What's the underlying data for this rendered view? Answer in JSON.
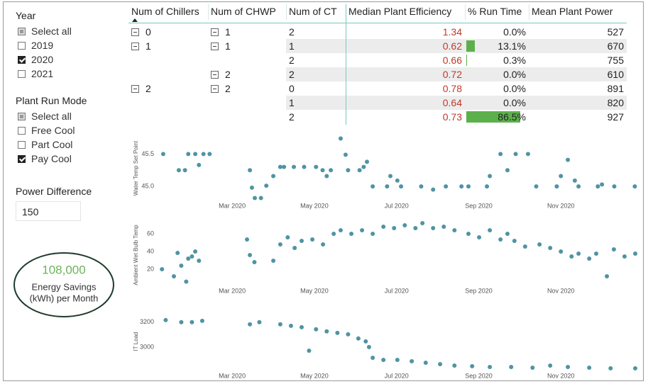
{
  "slicers": [
    {
      "title": "Year",
      "items": [
        {
          "label": "Select all",
          "state": "partial"
        },
        {
          "label": "2019",
          "state": "unchecked"
        },
        {
          "label": "2020",
          "state": "checked"
        },
        {
          "label": "2021",
          "state": "unchecked"
        }
      ]
    },
    {
      "title": "Plant Run Mode",
      "items": [
        {
          "label": "Select all",
          "state": "partial"
        },
        {
          "label": "Free Cool",
          "state": "unchecked"
        },
        {
          "label": "Part Cool",
          "state": "unchecked"
        },
        {
          "label": "Pay Cool",
          "state": "checked"
        }
      ]
    }
  ],
  "power_difference": {
    "label": "Power Difference",
    "value": "150"
  },
  "card": {
    "value": "108,000",
    "lines": [
      "Energy Savings",
      "(kWh) per Month"
    ]
  },
  "table": {
    "columns": [
      "Num of Chillers",
      "Num of CHWP",
      "Num of CT",
      "Median Plant Efficiency",
      "% Run Time",
      "Mean Plant Power"
    ],
    "rows": [
      {
        "chillers": "0",
        "chwp": "1",
        "ct": "2",
        "efficiency": "1.34",
        "run_time": 0.0,
        "run_time_label": "0.0%",
        "power": "527"
      },
      {
        "chillers": "1",
        "chwp": "1",
        "ct": "1",
        "efficiency": "0.62",
        "run_time": 13.1,
        "run_time_label": "13.1%",
        "power": "670"
      },
      {
        "chillers": null,
        "chwp": null,
        "ct": "2",
        "efficiency": "0.66",
        "run_time": 0.3,
        "run_time_label": "0.3%",
        "power": "755"
      },
      {
        "chillers": null,
        "chwp": "2",
        "ct": "2",
        "efficiency": "0.72",
        "run_time": 0.0,
        "run_time_label": "0.0%",
        "power": "610"
      },
      {
        "chillers": "2",
        "chwp": "2",
        "ct": "0",
        "efficiency": "0.78",
        "run_time": 0.0,
        "run_time_label": "0.0%",
        "power": "891"
      },
      {
        "chillers": null,
        "chwp": null,
        "ct": "1",
        "efficiency": "0.64",
        "run_time": 0.0,
        "run_time_label": "0.0%",
        "power": "820"
      },
      {
        "chillers": null,
        "chwp": null,
        "ct": "2",
        "efficiency": "0.73",
        "run_time": 86.5,
        "run_time_label": "86.5%",
        "power": "927"
      }
    ]
  },
  "chart_data": [
    {
      "type": "scatter",
      "y_label": "Water Temp Set Point",
      "color": "#4f94a2",
      "grid": false,
      "x": [
        1.32,
        1.7,
        1.85,
        1.93,
        2.1,
        2.19,
        2.3,
        2.45,
        3.43,
        3.48,
        3.55,
        3.7,
        3.83,
        4.0,
        4.17,
        4.26,
        4.5,
        4.75,
        5.04,
        5.2,
        5.3,
        5.4,
        5.64,
        5.76,
        5.82,
        6.1,
        6.2,
        6.28,
        6.42,
        6.77,
        6.85,
        7.02,
        7.11,
        7.6,
        7.89,
        8.2,
        8.58,
        8.75,
        9.2,
        9.27,
        9.53,
        9.7,
        9.9,
        10.2,
        10.4,
        10.9,
        11.0,
        11.17,
        11.34,
        11.43,
        11.9,
        12.0,
        12.3,
        12.8
      ],
      "values": [
        45.5,
        45.25,
        45.25,
        45.5,
        45.5,
        45.33,
        45.5,
        45.5,
        45.25,
        44.98,
        44.82,
        44.82,
        45.01,
        45.16,
        45.3,
        45.3,
        45.3,
        45.3,
        45.3,
        45.25,
        45.16,
        45.25,
        45.74,
        45.49,
        45.25,
        45.25,
        45.3,
        45.38,
        45.0,
        45.0,
        45.16,
        45.09,
        45.0,
        45.0,
        44.95,
        45.0,
        45.0,
        45.0,
        45.0,
        45.16,
        45.5,
        45.25,
        45.5,
        45.5,
        45.0,
        45.0,
        45.16,
        45.41,
        45.09,
        45.0,
        45.0,
        45.03,
        45.0,
        45.0
      ],
      "xlim": [
        1.2,
        13.0
      ],
      "xticks": [
        {
          "value": 3,
          "label": "Mar 2020"
        },
        {
          "value": 5,
          "label": "May 2020"
        },
        {
          "value": 7,
          "label": "Jul 2020"
        },
        {
          "value": 9,
          "label": "Sep 2020"
        },
        {
          "value": 11,
          "label": "Nov 2020"
        }
      ],
      "ylim": [
        44.76,
        45.8
      ],
      "yticks": [
        {
          "value": 45,
          "label": "45.0"
        },
        45.5
      ]
    },
    {
      "type": "scatter",
      "y_label": "Ambient Wet Bulb Temp",
      "color": "#4f94a2",
      "grid": false,
      "x": [
        1.29,
        1.58,
        1.67,
        1.76,
        1.88,
        1.93,
        2.02,
        2.1,
        2.19,
        3.36,
        3.43,
        3.54,
        4.0,
        4.17,
        4.35,
        4.52,
        4.69,
        4.95,
        5.21,
        5.47,
        5.64,
        5.9,
        6.16,
        6.42,
        6.68,
        6.94,
        7.2,
        7.46,
        7.63,
        7.89,
        8.15,
        8.41,
        8.75,
        9.01,
        9.27,
        9.53,
        9.7,
        9.87,
        10.13,
        10.48,
        10.74,
        11.0,
        11.26,
        11.43,
        11.69,
        11.86,
        12.12,
        12.29,
        12.55,
        12.81
      ],
      "values": [
        20,
        12,
        38.4,
        24,
        6,
        32,
        34.4,
        40,
        29.6,
        53.6,
        36,
        28,
        29.6,
        48,
        56,
        44,
        52,
        53.6,
        48,
        60,
        64,
        60,
        64,
        60,
        68,
        66.4,
        69.6,
        66.4,
        72,
        66.4,
        68,
        64,
        60,
        56,
        64,
        53.6,
        60,
        52,
        45.6,
        48,
        44,
        40,
        34.4,
        37.6,
        32,
        37.6,
        12,
        42.4,
        34.4,
        37.6
      ],
      "xlim": [
        1.2,
        13.0
      ],
      "xticks": [
        {
          "value": 3,
          "label": "Mar 2020"
        },
        {
          "value": 5,
          "label": "May 2020"
        },
        {
          "value": 7,
          "label": "Jul 2020"
        },
        {
          "value": 9,
          "label": "Sep 2020"
        },
        {
          "value": 11,
          "label": "Nov 2020"
        }
      ],
      "ylim": [
        0,
        72
      ],
      "yticks": [
        20,
        40,
        60
      ]
    },
    {
      "type": "scatter",
      "y_label": "IT Load",
      "color": "#4f94a2",
      "grid": false,
      "x": [
        1.38,
        1.76,
        2.02,
        2.27,
        3.43,
        3.66,
        4.17,
        4.43,
        4.69,
        4.87,
        5.04,
        5.3,
        5.56,
        5.82,
        6.07,
        6.25,
        6.33,
        6.42,
        6.68,
        7.02,
        7.37,
        7.71,
        8.06,
        8.41,
        8.84,
        9.27,
        9.79,
        10.31,
        10.74,
        11.17,
        11.69,
        12.21,
        12.81
      ],
      "values": [
        3217,
        3200,
        3200,
        3211,
        3183,
        3200,
        3183,
        3171,
        3160,
        2971,
        3143,
        3126,
        3114,
        3103,
        3069,
        3046,
        3000,
        2914,
        2897,
        2897,
        2886,
        2874,
        2863,
        2851,
        2846,
        2840,
        2840,
        2834,
        2851,
        2840,
        2834,
        2829,
        2829
      ],
      "xlim": [
        1.2,
        13.0
      ],
      "xticks": [
        {
          "value": 3,
          "label": "Mar 2020"
        },
        {
          "value": 5,
          "label": "May 2020"
        },
        {
          "value": 7,
          "label": "Jul 2020"
        },
        {
          "value": 9,
          "label": "Sep 2020"
        },
        {
          "value": 11,
          "label": "Nov 2020"
        }
      ],
      "ylim": [
        2800,
        3290
      ],
      "yticks": [
        3000,
        3200
      ]
    }
  ]
}
